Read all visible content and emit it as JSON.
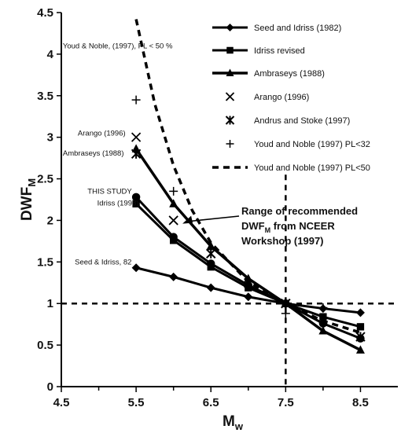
{
  "chart_data": {
    "type": "line",
    "xlabel": "M",
    "xlabel_sub": "w",
    "ylabel": "DWF",
    "ylabel_sub": "M",
    "xlim": [
      4.5,
      9.0
    ],
    "ylim": [
      0,
      4.5
    ],
    "x_ticks": [
      "4.5",
      "5.5",
      "6.5",
      "7.5",
      "8.5"
    ],
    "x_tick_values": [
      4.5,
      5.5,
      6.5,
      7.5,
      8.5
    ],
    "y_ticks": [
      "0",
      "0.5",
      "1",
      "1.5",
      "2",
      "2.5",
      "3",
      "3.5",
      "4",
      "4.5"
    ],
    "y_tick_values": [
      0,
      0.5,
      1,
      1.5,
      2,
      2.5,
      3,
      3.5,
      4,
      4.5
    ],
    "grid": false,
    "legend_position": "top-right",
    "series": [
      {
        "name": "Seed and Idriss (1982)",
        "style": "line-diamond",
        "x": [
          5.5,
          6.0,
          6.5,
          7.0,
          7.5,
          8.0,
          8.5
        ],
        "y": [
          1.43,
          1.32,
          1.19,
          1.08,
          1.0,
          0.94,
          0.89
        ]
      },
      {
        "name": "Idriss revised",
        "style": "line-square",
        "x": [
          5.5,
          6.0,
          6.5,
          7.0,
          7.5,
          8.0,
          8.5
        ],
        "y": [
          2.2,
          1.76,
          1.44,
          1.19,
          1.0,
          0.84,
          0.72
        ]
      },
      {
        "name": "Ambraseys (1988)",
        "style": "line-triangle",
        "x": [
          5.5,
          6.0,
          6.5,
          7.0,
          7.5,
          8.0,
          8.5
        ],
        "y": [
          2.86,
          2.2,
          1.69,
          1.3,
          1.0,
          0.67,
          0.44
        ]
      },
      {
        "name": "Arango (1996)",
        "style": "x-marker",
        "x": [
          5.5,
          6.0,
          7.5
        ],
        "y": [
          3.0,
          2.0,
          1.0
        ]
      },
      {
        "name": "Andrus and Stoke (1997)",
        "style": "star-marker",
        "x": [
          5.5,
          6.5,
          7.5,
          8.5
        ],
        "y": [
          2.8,
          1.6,
          1.0,
          0.6
        ]
      },
      {
        "name": "Youd and Noble (1997) PL<32",
        "style": "plus-marker",
        "x": [
          5.5,
          6.0,
          6.5,
          7.0,
          7.5,
          8.0
        ],
        "y": [
          3.45,
          2.35,
          1.65,
          1.2,
          0.88,
          0.95
        ]
      },
      {
        "name": "Youd and Noble (1997) PL<50",
        "style": "dashed-line",
        "x": [
          5.5,
          5.75,
          6.0,
          6.25,
          6.5,
          7.0,
          7.5,
          8.0,
          8.5
        ],
        "y": [
          4.42,
          3.4,
          2.66,
          2.12,
          1.73,
          1.26,
          1.0,
          0.79,
          0.65
        ]
      }
    ],
    "extra_curve": {
      "style": "line-circle",
      "x": [
        5.5,
        6.0,
        6.5,
        7.0,
        7.5,
        8.0,
        8.5
      ],
      "y": [
        2.28,
        1.8,
        1.48,
        1.22,
        1.0,
        0.76,
        0.58
      ]
    },
    "reference_lines": {
      "horizontal_y": 1.0,
      "vertical_x": 7.5
    },
    "annotations": [
      {
        "id": "youd-noble",
        "text": "Youd & Noble, (1997), PL < 50 %",
        "x": 4.52,
        "y": 4.07
      },
      {
        "id": "arango",
        "text": "Arango (1996)",
        "x": 4.72,
        "y": 3.02
      },
      {
        "id": "ambraseys",
        "text": "Ambraseys (1988)",
        "x": 4.52,
        "y": 2.78
      },
      {
        "id": "this-study",
        "text": "THIS STUDY",
        "x": 4.85,
        "y": 2.32
      },
      {
        "id": "idriss",
        "text": "Idriss (1998)",
        "x": 4.98,
        "y": 2.18
      },
      {
        "id": "seed-idriss",
        "text": "Seed & Idriss, 82",
        "x": 4.68,
        "y": 1.47
      }
    ],
    "range_note": {
      "lines": [
        "Range of recommended",
        "DWF_M from NCEER",
        "Workshop (1997)"
      ],
      "arrow_to": [
        6.12,
        1.96
      ]
    }
  }
}
